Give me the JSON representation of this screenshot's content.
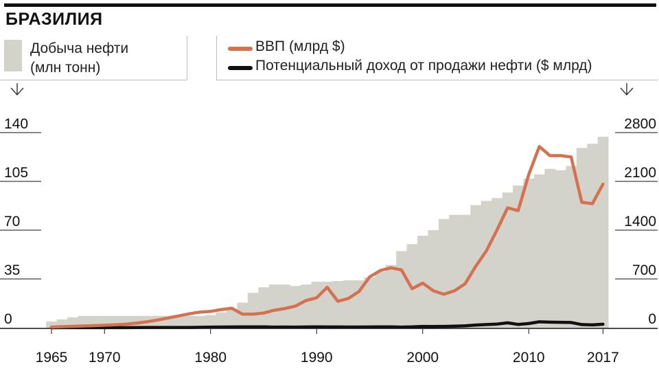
{
  "title": "БРАЗИЛИЯ",
  "legend": {
    "bars": [
      "Добыча нефти",
      "(млн тонн)"
    ],
    "gdp": "ВВП (млрд $)",
    "income": "Потенциальный доход от продажи нефти ($ млрд)"
  },
  "colors": {
    "bars": "#d3d2cb",
    "gdp": "#d4714f",
    "income": "#111111",
    "axis": "#111111",
    "grid": "#111111"
  },
  "chart_data": {
    "type": "bar+line",
    "x_ticks": [
      "1965",
      "1970",
      "1980",
      "1990",
      "2000",
      "2010",
      "2017"
    ],
    "y_left": {
      "ticks": [
        "0",
        "35",
        "70",
        "105",
        "140"
      ],
      "ylim": [
        0,
        140
      ]
    },
    "y_right": {
      "ticks": [
        "0",
        "700",
        "1400",
        "2100",
        "2800"
      ],
      "ylim": [
        0,
        2800
      ]
    },
    "years": [
      1965,
      1966,
      1967,
      1968,
      1969,
      1970,
      1971,
      1972,
      1973,
      1974,
      1975,
      1976,
      1977,
      1978,
      1979,
      1980,
      1981,
      1982,
      1983,
      1984,
      1985,
      1986,
      1987,
      1988,
      1989,
      1990,
      1991,
      1992,
      1993,
      1994,
      1995,
      1996,
      1997,
      1998,
      1999,
      2000,
      2001,
      2002,
      2003,
      2004,
      2005,
      2006,
      2007,
      2008,
      2009,
      2010,
      2011,
      2012,
      2013,
      2014,
      2015,
      2016,
      2017
    ],
    "series": [
      {
        "name": "Добыча нефти (млн тонн)",
        "axis": "left",
        "type": "bar",
        "values": [
          4.5,
          6,
          7.5,
          8.5,
          8.5,
          8.5,
          8.5,
          8.5,
          8.5,
          8.5,
          8.5,
          8.5,
          8.5,
          8.5,
          8.5,
          9,
          11,
          13,
          18,
          25,
          29,
          31,
          31,
          30,
          31,
          33,
          33,
          33.5,
          34,
          34,
          36,
          40,
          45,
          55,
          60,
          66,
          70,
          78,
          81,
          81,
          88,
          91,
          93,
          97,
          102,
          107,
          110,
          114,
          113,
          116,
          129,
          132,
          137
        ]
      },
      {
        "name": "ВВП (млрд $)",
        "axis": "right",
        "type": "line",
        "values": [
          10,
          15,
          20,
          25,
          30,
          35,
          42,
          50,
          65,
          85,
          110,
          140,
          170,
          200,
          225,
          235,
          260,
          280,
          195,
          195,
          210,
          250,
          275,
          310,
          390,
          430,
          580,
          380,
          420,
          520,
          730,
          820,
          860,
          830,
          560,
          640,
          530,
          480,
          530,
          630,
          880,
          1100,
          1400,
          1720,
          1680,
          2200,
          2600,
          2470,
          2470,
          2450,
          1800,
          1780,
          2060
        ]
      },
      {
        "name": "Потенциальный доход от продажи нефти ($ млрд)",
        "axis": "right",
        "type": "line",
        "values": [
          0.4,
          0.5,
          0.5,
          0.6,
          0.6,
          0.7,
          0.7,
          0.7,
          1.5,
          3.5,
          3.5,
          3.8,
          4.0,
          4.0,
          6.0,
          9,
          10,
          10.5,
          12,
          13,
          13,
          9,
          10,
          9,
          11,
          13,
          11,
          11,
          10,
          10,
          11,
          13,
          13,
          9,
          12,
          19,
          18,
          19,
          22,
          28,
          38,
          45,
          52,
          70,
          47,
          60,
          85,
          80,
          78,
          75,
          45,
          40,
          50
        ]
      }
    ]
  }
}
